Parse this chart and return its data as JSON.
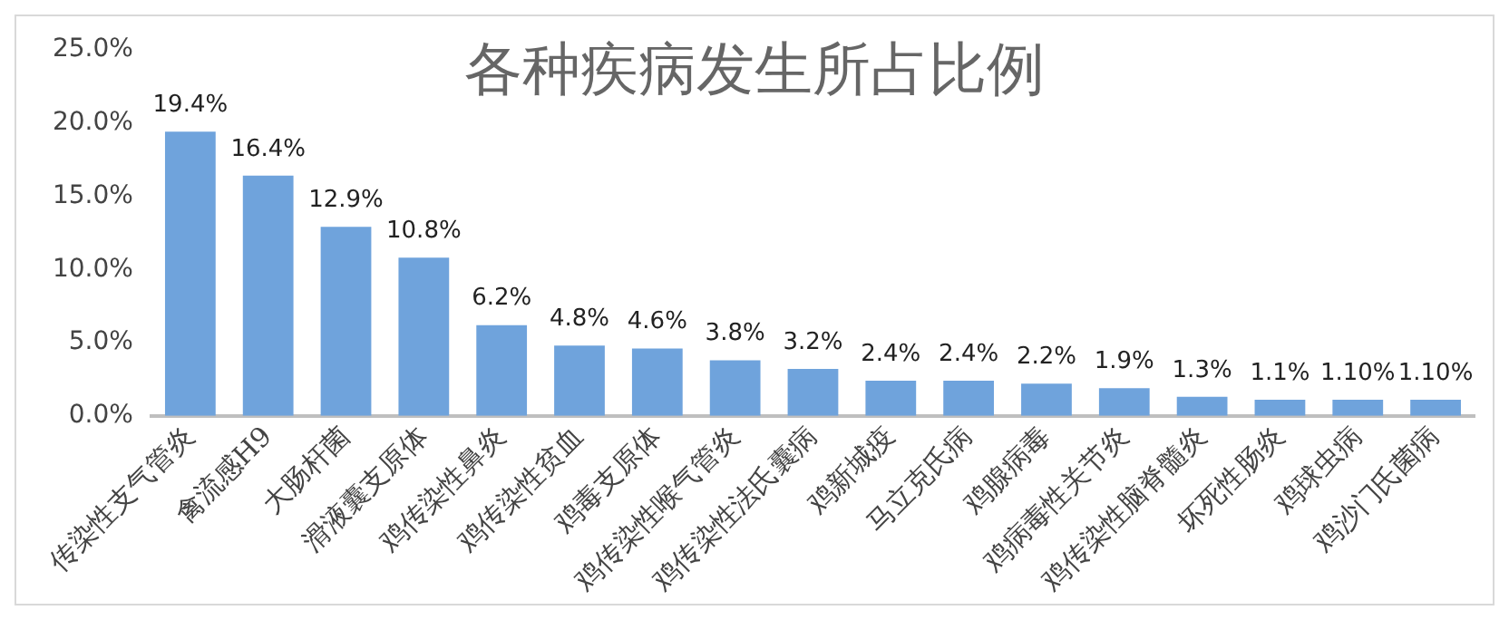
{
  "chart_data": {
    "type": "bar",
    "title": "各种疾病发生所占比例",
    "categories": [
      "传染性支气管炎",
      "禽流感H9",
      "大肠杆菌",
      "滑液囊支原体",
      "鸡传染性鼻炎",
      "鸡传染性贫血",
      "鸡毒支原体",
      "鸡传染性喉气管炎",
      "鸡传染性法氏囊病",
      "鸡新城疫",
      "马立克氏病",
      "鸡腺病毒",
      "鸡病毒性关节炎",
      "鸡传染性脑脊髓炎",
      "坏死性肠炎",
      "鸡球虫病",
      "鸡沙门氏菌病"
    ],
    "values": [
      19.4,
      16.4,
      12.9,
      10.8,
      6.2,
      4.8,
      4.6,
      3.8,
      3.2,
      2.4,
      2.4,
      2.2,
      1.9,
      1.3,
      1.1,
      1.1,
      1.1
    ],
    "value_labels": [
      "19.4%",
      "16.4%",
      "12.9%",
      "10.8%",
      "6.2%",
      "4.8%",
      "4.6%",
      "3.8%",
      "3.2%",
      "2.4%",
      "2.4%",
      "2.2%",
      "1.9%",
      "1.3%",
      "1.1%",
      "1.10%",
      "1.10%"
    ],
    "color": "#6fa3dc",
    "ylim": [
      0,
      25
    ],
    "yticks": [
      {
        "value": 0,
        "label": "0.0%"
      },
      {
        "value": 5,
        "label": "5.0%"
      },
      {
        "value": 10,
        "label": "10.0%"
      },
      {
        "value": 15,
        "label": "15.0%"
      },
      {
        "value": 20,
        "label": "20.0%"
      },
      {
        "value": 25,
        "label": "25.0%"
      }
    ],
    "grid": false,
    "legend": false
  }
}
